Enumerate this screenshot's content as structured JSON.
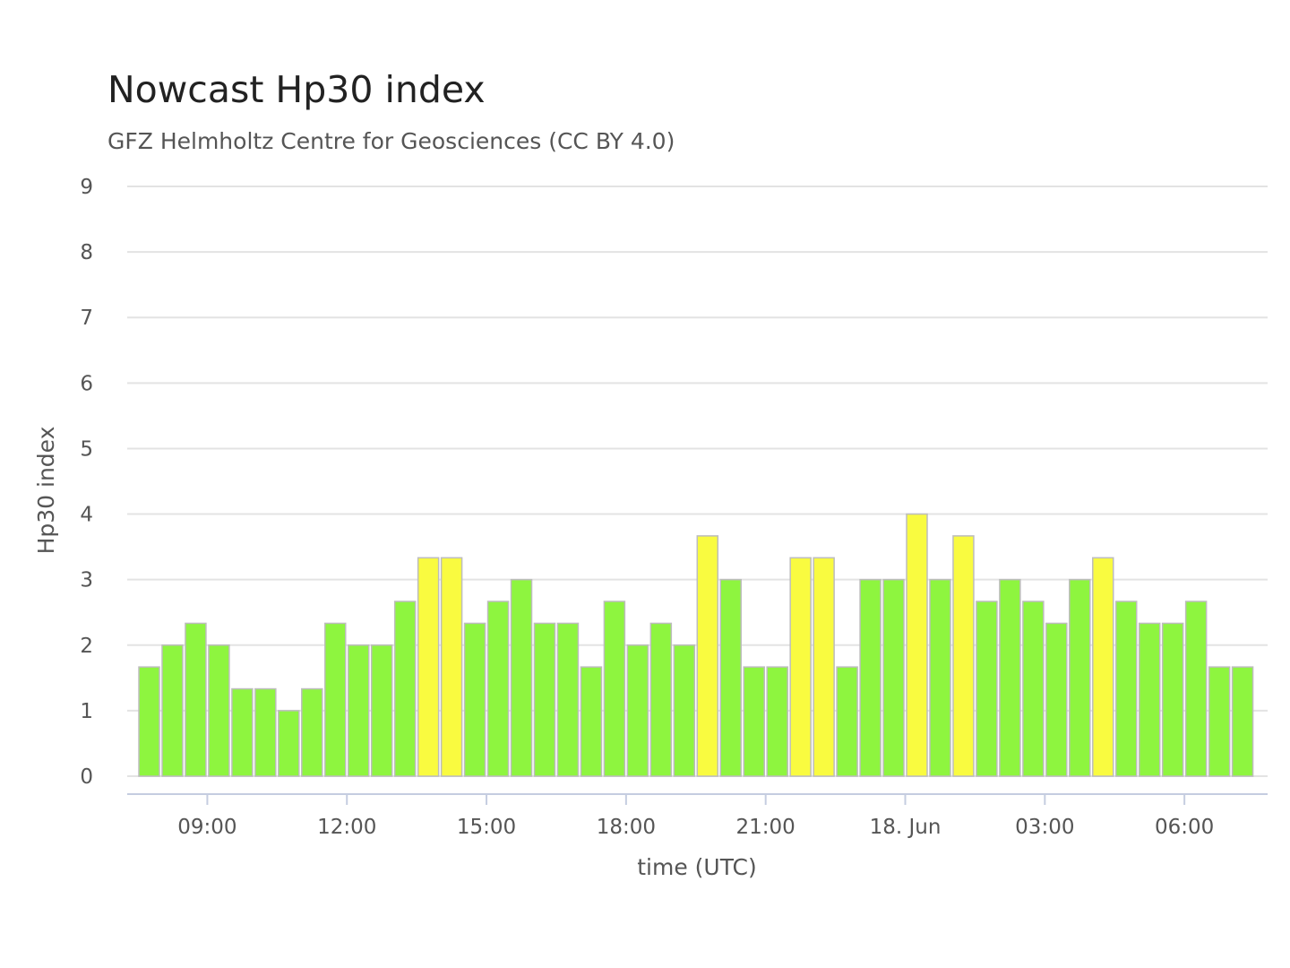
{
  "chart_data": {
    "type": "bar",
    "title": "Nowcast Hp30 index",
    "subtitle": "GFZ Helmholtz Centre for Geosciences (CC BY 4.0)",
    "xlabel": "time (UTC)",
    "ylabel": "Hp30 index",
    "ylim": [
      0,
      9
    ],
    "yticks": [
      "0",
      "1",
      "2",
      "3",
      "4",
      "5",
      "6",
      "7",
      "8",
      "9"
    ],
    "grid": true,
    "interval_minutes": 30,
    "first_bar": "17 Jun 07:30",
    "x_tick_labels": [
      {
        "time": "09:00",
        "label": "09:00"
      },
      {
        "time": "12:00",
        "label": "12:00"
      },
      {
        "time": "15:00",
        "label": "15:00"
      },
      {
        "time": "18:00",
        "label": "18:00"
      },
      {
        "time": "21:00",
        "label": "21:00"
      },
      {
        "time": "00:00",
        "label": "18. Jun"
      },
      {
        "time": "03:00",
        "label": "03:00"
      },
      {
        "time": "06:00",
        "label": "06:00"
      }
    ],
    "values": [
      1.667,
      2,
      2.333,
      2,
      1.333,
      1.333,
      1,
      1.333,
      2.333,
      2,
      2,
      2.667,
      3.333,
      3.333,
      2.333,
      2.667,
      3,
      2.333,
      2.333,
      1.667,
      2.667,
      2,
      2.333,
      2,
      3.667,
      3,
      1.667,
      1.667,
      3.333,
      3.333,
      1.667,
      3,
      3,
      4,
      3,
      3.667,
      2.667,
      3,
      2.667,
      2.333,
      3,
      3.333,
      2.667,
      2.333,
      2.333,
      2.667,
      1.667,
      1.667
    ],
    "colors": {
      "below_threshold": "#8ef53f",
      "at_or_above_threshold": "#f9fb40"
    },
    "color_threshold": 3.333
  }
}
